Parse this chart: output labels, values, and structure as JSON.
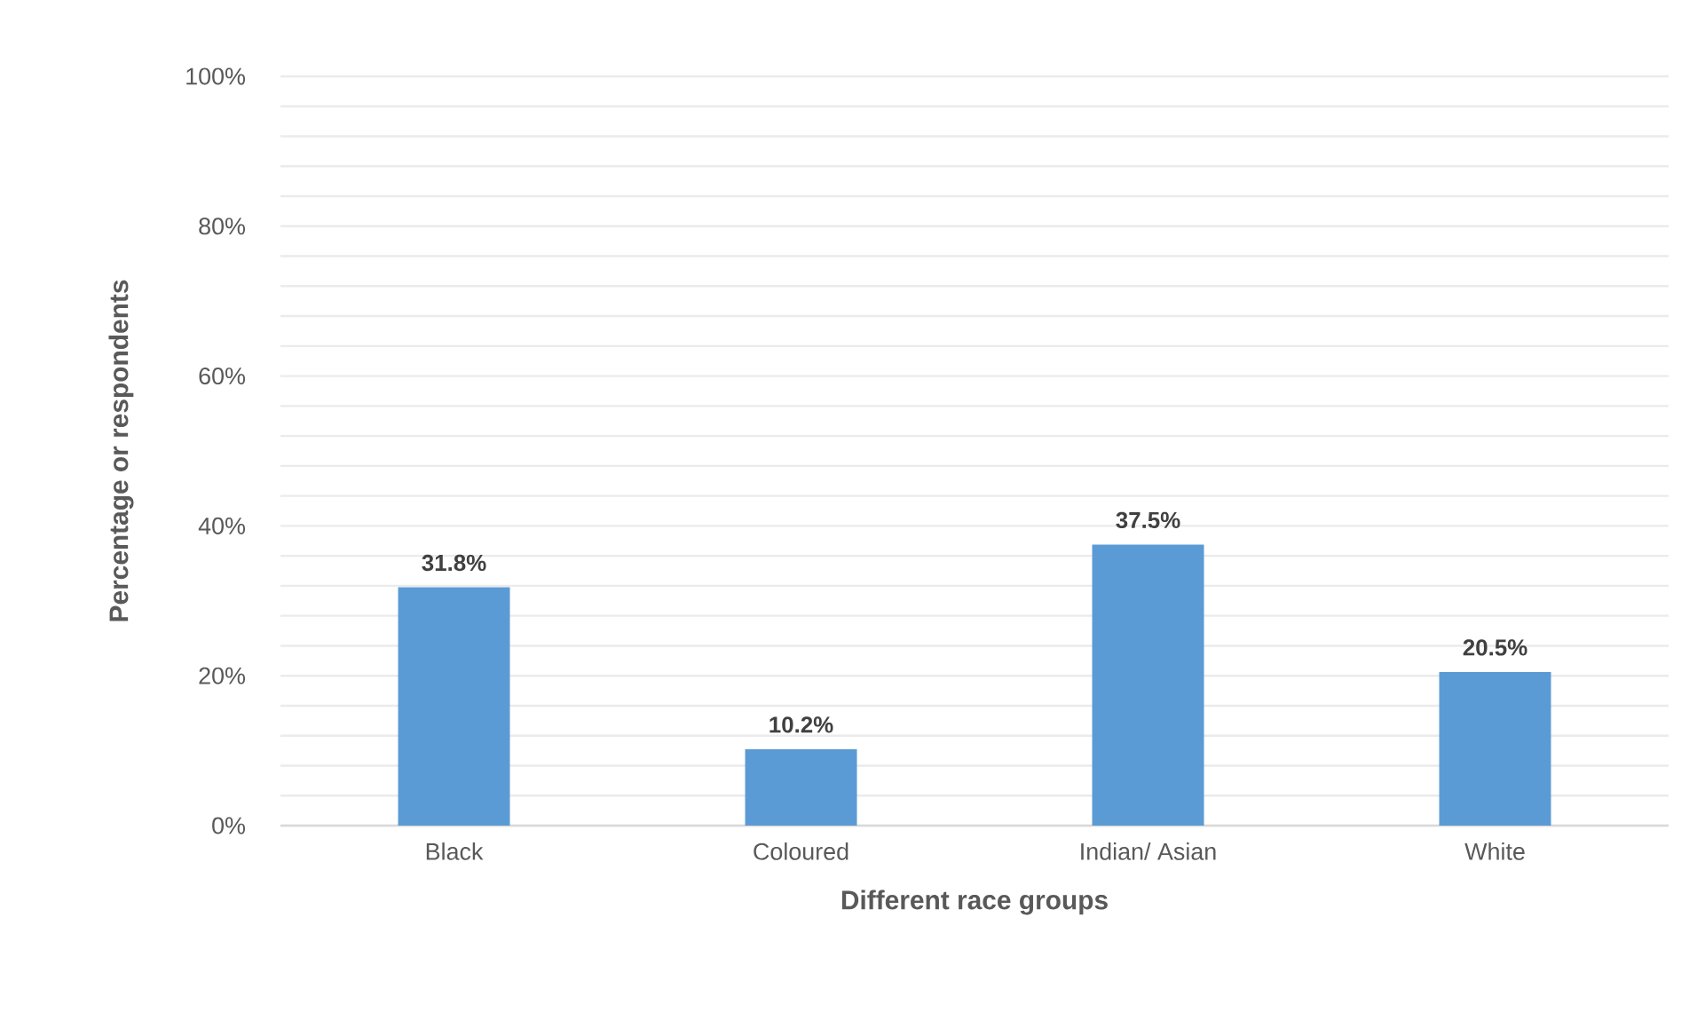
{
  "chart_data": {
    "type": "bar",
    "xlabel": "Different race groups",
    "ylabel": "Percentage or respondents",
    "categories": [
      "Black",
      "Coloured",
      "Indian/ Asian",
      "White"
    ],
    "values": [
      31.8,
      10.2,
      37.5,
      20.5
    ],
    "value_labels": [
      "31.8%",
      "10.2%",
      "37.5%",
      "20.5%"
    ],
    "color": "#5b9bd5",
    "ylim": [
      0,
      100
    ],
    "yticks": [
      {
        "value": 0,
        "label": "0%"
      },
      {
        "value": 20,
        "label": "20%"
      },
      {
        "value": 40,
        "label": "40%"
      },
      {
        "value": 60,
        "label": "60%"
      },
      {
        "value": 80,
        "label": "80%"
      },
      {
        "value": 100,
        "label": "100%"
      }
    ],
    "grid": "y"
  }
}
